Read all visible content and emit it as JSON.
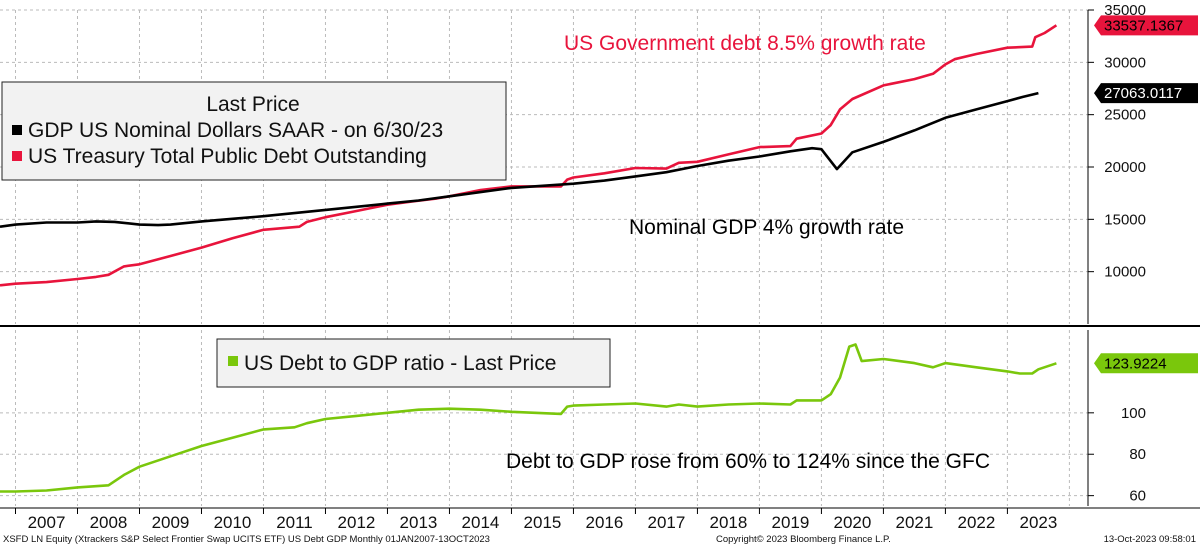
{
  "colors": {
    "gdp": "#000000",
    "debt": "#e8143c",
    "ratio": "#7ac70c"
  },
  "chart_data": [
    {
      "type": "line",
      "x_range": [
        2006.75,
        2024.3
      ],
      "ylim": [
        5000,
        35000
      ],
      "yticks": [
        10000,
        15000,
        20000,
        25000,
        30000,
        35000
      ],
      "grid": true,
      "legend": {
        "placement": "top-left",
        "title": "Last Price",
        "entries": [
          "GDP US Nominal Dollars SAAR -  on 6/30/23",
          "US Treasury Total Public Debt Outstanding"
        ]
      },
      "annotations": [
        "US Government debt 8.5% growth rate",
        "Nominal GDP 4% growth rate"
      ],
      "series": [
        {
          "name": "US Treasury Total Public Debt Outstanding",
          "color": "#e8143c",
          "last_value_label": "33537.1367",
          "points": [
            [
              2006.75,
              8700
            ],
            [
              2007.0,
              8850
            ],
            [
              2007.5,
              9000
            ],
            [
              2008.0,
              9300
            ],
            [
              2008.3,
              9500
            ],
            [
              2008.5,
              9700
            ],
            [
              2008.75,
              10500
            ],
            [
              2009.0,
              10700
            ],
            [
              2009.5,
              11500
            ],
            [
              2010.0,
              12300
            ],
            [
              2010.5,
              13200
            ],
            [
              2011.0,
              14000
            ],
            [
              2011.58,
              14300
            ],
            [
              2011.7,
              14750
            ],
            [
              2012.0,
              15200
            ],
            [
              2012.5,
              15800
            ],
            [
              2013.0,
              16400
            ],
            [
              2013.4,
              16700
            ],
            [
              2013.8,
              17000
            ],
            [
              2014.0,
              17200
            ],
            [
              2014.5,
              17800
            ],
            [
              2015.0,
              18150
            ],
            [
              2015.8,
              18150
            ],
            [
              2015.9,
              18800
            ],
            [
              2016.0,
              19000
            ],
            [
              2016.5,
              19400
            ],
            [
              2017.0,
              19900
            ],
            [
              2017.5,
              19850
            ],
            [
              2017.7,
              20400
            ],
            [
              2018.0,
              20500
            ],
            [
              2018.5,
              21200
            ],
            [
              2019.0,
              21900
            ],
            [
              2019.5,
              22000
            ],
            [
              2019.6,
              22700
            ],
            [
              2020.0,
              23200
            ],
            [
              2020.15,
              24000
            ],
            [
              2020.3,
              25500
            ],
            [
              2020.5,
              26500
            ],
            [
              2021.0,
              27800
            ],
            [
              2021.5,
              28400
            ],
            [
              2021.8,
              28900
            ],
            [
              2022.0,
              29800
            ],
            [
              2022.15,
              30300
            ],
            [
              2022.5,
              30800
            ],
            [
              2023.0,
              31400
            ],
            [
              2023.4,
              31500
            ],
            [
              2023.45,
              32400
            ],
            [
              2023.6,
              32800
            ],
            [
              2023.79,
              33537
            ]
          ]
        },
        {
          "name": "GDP US Nominal Dollars SAAR -  on 6/30/23",
          "color": "#000000",
          "last_value_label": "27063.0117",
          "points": [
            [
              2006.75,
              14300
            ],
            [
              2007.0,
              14500
            ],
            [
              2007.5,
              14700
            ],
            [
              2008.0,
              14700
            ],
            [
              2008.3,
              14800
            ],
            [
              2008.6,
              14750
            ],
            [
              2009.0,
              14500
            ],
            [
              2009.3,
              14450
            ],
            [
              2009.5,
              14500
            ],
            [
              2010.0,
              14800
            ],
            [
              2010.5,
              15050
            ],
            [
              2011.0,
              15300
            ],
            [
              2011.5,
              15600
            ],
            [
              2012.0,
              15900
            ],
            [
              2012.5,
              16200
            ],
            [
              2013.0,
              16500
            ],
            [
              2013.5,
              16800
            ],
            [
              2014.0,
              17200
            ],
            [
              2014.5,
              17600
            ],
            [
              2015.0,
              18000
            ],
            [
              2015.5,
              18200
            ],
            [
              2016.0,
              18400
            ],
            [
              2016.5,
              18700
            ],
            [
              2017.0,
              19100
            ],
            [
              2017.5,
              19500
            ],
            [
              2018.0,
              20100
            ],
            [
              2018.5,
              20600
            ],
            [
              2019.0,
              21000
            ],
            [
              2019.5,
              21500
            ],
            [
              2019.85,
              21800
            ],
            [
              2020.0,
              21700
            ],
            [
              2020.25,
              19800
            ],
            [
              2020.5,
              21400
            ],
            [
              2021.0,
              22400
            ],
            [
              2021.5,
              23500
            ],
            [
              2022.0,
              24700
            ],
            [
              2022.5,
              25500
            ],
            [
              2023.0,
              26300
            ],
            [
              2023.25,
              26700
            ],
            [
              2023.5,
              27063
            ]
          ]
        }
      ]
    },
    {
      "type": "line",
      "x_range": [
        2006.75,
        2024.3
      ],
      "ylim": [
        55,
        140
      ],
      "yticks": [
        60,
        80,
        100
      ],
      "grid": true,
      "legend": {
        "placement": "top-left",
        "entries": [
          "US Debt to GDP ratio - Last Price"
        ]
      },
      "annotations": [
        "Debt to GDP rose from  60% to 124% since the GFC"
      ],
      "series": [
        {
          "name": "US Debt to GDP ratio - Last Price",
          "color": "#7ac70c",
          "last_value_label": "123.9224",
          "points": [
            [
              2006.75,
              62
            ],
            [
              2007.0,
              62
            ],
            [
              2007.5,
              62.5
            ],
            [
              2008.0,
              64
            ],
            [
              2008.5,
              65
            ],
            [
              2008.75,
              70
            ],
            [
              2009.0,
              74
            ],
            [
              2009.5,
              79
            ],
            [
              2010.0,
              84
            ],
            [
              2010.5,
              88
            ],
            [
              2011.0,
              92
            ],
            [
              2011.5,
              93
            ],
            [
              2011.7,
              95
            ],
            [
              2012.0,
              97
            ],
            [
              2012.5,
              98.5
            ],
            [
              2013.0,
              100
            ],
            [
              2013.5,
              101.5
            ],
            [
              2014.0,
              102
            ],
            [
              2014.5,
              101.5
            ],
            [
              2015.0,
              100.5
            ],
            [
              2015.8,
              99.5
            ],
            [
              2015.9,
              103
            ],
            [
              2016.0,
              103.5
            ],
            [
              2016.5,
              104
            ],
            [
              2017.0,
              104.5
            ],
            [
              2017.5,
              103
            ],
            [
              2017.7,
              104
            ],
            [
              2018.0,
              103
            ],
            [
              2018.5,
              104
            ],
            [
              2019.0,
              104.5
            ],
            [
              2019.5,
              104
            ],
            [
              2019.6,
              106
            ],
            [
              2020.0,
              106
            ],
            [
              2020.15,
              109
            ],
            [
              2020.3,
              117
            ],
            [
              2020.45,
              132
            ],
            [
              2020.55,
              133
            ],
            [
              2020.65,
              125
            ],
            [
              2021.0,
              126
            ],
            [
              2021.5,
              124
            ],
            [
              2021.8,
              122
            ],
            [
              2022.0,
              124
            ],
            [
              2022.5,
              122
            ],
            [
              2023.0,
              120
            ],
            [
              2023.2,
              119
            ],
            [
              2023.4,
              119
            ],
            [
              2023.5,
              121
            ],
            [
              2023.79,
              123.92
            ]
          ]
        }
      ]
    }
  ],
  "x_axis": {
    "years": [
      "2007",
      "2008",
      "2009",
      "2010",
      "2011",
      "2012",
      "2013",
      "2014",
      "2015",
      "2016",
      "2017",
      "2018",
      "2019",
      "2020",
      "2021",
      "2022",
      "2023"
    ]
  },
  "footer": {
    "left": "XSFD LN Equity (Xtrackers S&P Select Frontier Swap UCITS ETF) US Debt GDP  Monthly 01JAN2007-13OCT2023",
    "center": "Copyright© 2023 Bloomberg Finance L.P.",
    "right": "13-Oct-2023 09:58:01"
  }
}
